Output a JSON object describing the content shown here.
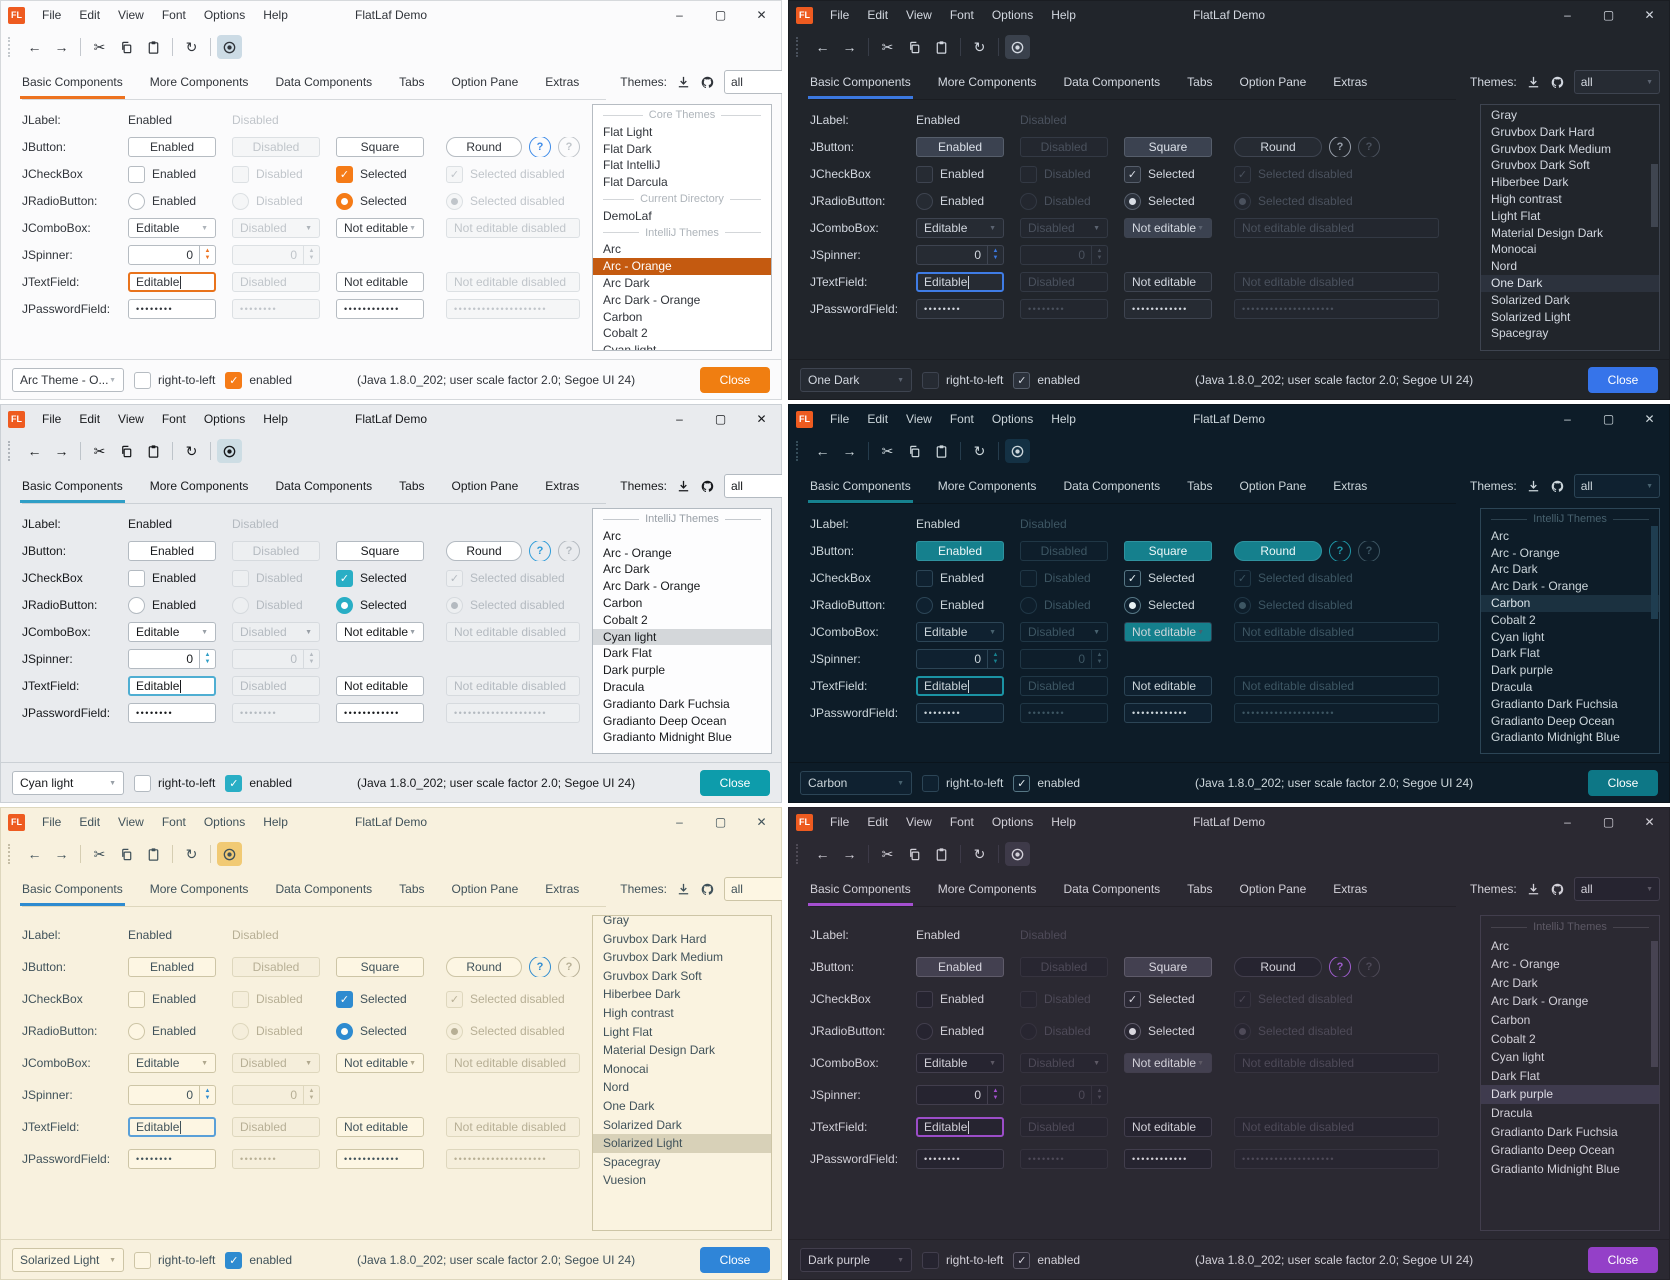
{
  "app": {
    "title": "FlatLaf Demo",
    "icon_text": "FL",
    "menu": [
      "File",
      "Edit",
      "View",
      "Font",
      "Options",
      "Help"
    ],
    "window_buttons": {
      "minimize": "–",
      "maximize": "▢",
      "close": "✕"
    }
  },
  "glyphs": {
    "back": "←",
    "forward": "→",
    "cut": "✂",
    "refresh": "↻",
    "combo_arrow": "▼",
    "check": "✓",
    "help": "?"
  },
  "tabs": [
    "Basic Components",
    "More Components",
    "Data Components",
    "Tabs",
    "Option Pane",
    "Extras"
  ],
  "themes_panel": {
    "label": "Themes:",
    "filter_value": "all"
  },
  "components": {
    "rows": {
      "jlabel": "JLabel:",
      "jbutton": "JButton:",
      "jcheckbox": "JCheckBox",
      "jradiobutton": "JRadioButton:",
      "jcombobox": "JComboBox:",
      "jspinner": "JSpinner:",
      "jtextfield": "JTextField:",
      "jpasswordfield": "JPasswordField:"
    },
    "jlabel": {
      "enabled": "Enabled",
      "disabled": "Disabled"
    },
    "jbutton": {
      "enabled": "Enabled",
      "disabled": "Disabled",
      "square": "Square",
      "round": "Round"
    },
    "jcheckbox": {
      "enabled": "Enabled",
      "disabled": "Disabled",
      "selected": "Selected",
      "selected_disabled": "Selected disabled"
    },
    "jradiobutton": {
      "enabled": "Enabled",
      "disabled": "Disabled",
      "selected": "Selected",
      "selected_disabled": "Selected disabled"
    },
    "jcombobox": {
      "editable": "Editable",
      "disabled": "Disabled",
      "not_editable": "Not editable",
      "not_editable_disabled": "Not editable disabled"
    },
    "jspinner": {
      "value": "0"
    },
    "jtextfield": {
      "editable": "Editable",
      "disabled": "Disabled",
      "not_editable": "Not editable",
      "not_editable_disabled": "Not editable disabled"
    },
    "jpasswordfield": {
      "enabled": "••••••••",
      "disabled": "••••••••",
      "not_editable": "••••••••••••",
      "not_editable_disabled": "••••••••••••••••••••"
    }
  },
  "statusbar": {
    "rtl_label": "right-to-left",
    "enabled_label": "enabled",
    "java_info": "(Java 1.8.0_202;  user scale factor 2.0; Segoe UI 24)",
    "close_label": "Close"
  },
  "windows": [
    {
      "id": "arc",
      "status_combo": "Arc Theme - O...",
      "theme_list": [
        {
          "sep": "Core Themes"
        },
        {
          "label": "Flat Light"
        },
        {
          "label": "Flat Dark"
        },
        {
          "label": "Flat IntelliJ"
        },
        {
          "label": "Flat Darcula"
        },
        {
          "sep": "Current Directory"
        },
        {
          "label": "DemoLaf"
        },
        {
          "sep": "IntelliJ Themes"
        },
        {
          "label": "Arc"
        },
        {
          "label": "Arc - Orange",
          "selected": true
        },
        {
          "label": "Arc Dark"
        },
        {
          "label": "Arc Dark - Orange"
        },
        {
          "label": "Carbon"
        },
        {
          "label": "Cobalt 2"
        },
        {
          "label": "Cyan light"
        }
      ],
      "colors": {
        "bg": "#fbfbfc",
        "fg": "#30343a",
        "muted": "#aeb4ba",
        "border": "#d6d9dc",
        "ctrlbg": "#ffffff",
        "ctrlborder": "#b6bcc2",
        "disbg": "#f5f6f7",
        "disfg": "#c0c5ca",
        "disborder": "#dce0e3",
        "accent": "#ed721f",
        "focus": "#e9731c",
        "selbg": "#c45a10",
        "selfg": "#ffffff",
        "closebg": "#f07e11",
        "btnbg": "#ffffff",
        "btnfg": "#30343a",
        "checkfill": "#f57b17",
        "checkmark": "#ffffff",
        "checkborder": "#f57b17",
        "eyebg": "#ccdbe5",
        "help": "#3c8ae8",
        "listbg": "#ffffff",
        "scroll": "transparent"
      }
    },
    {
      "id": "onedark",
      "status_combo": "One Dark",
      "theme_list": [
        {
          "label": "Gray"
        },
        {
          "label": "Gruvbox Dark Hard"
        },
        {
          "label": "Gruvbox Dark Medium"
        },
        {
          "label": "Gruvbox Dark Soft"
        },
        {
          "label": "Hiberbee Dark"
        },
        {
          "label": "High contrast"
        },
        {
          "label": "Light Flat"
        },
        {
          "label": "Material Design Dark"
        },
        {
          "label": "Monocai"
        },
        {
          "label": "Nord"
        },
        {
          "label": "One Dark",
          "selected": true
        },
        {
          "label": "Solarized Dark"
        },
        {
          "label": "Solarized Light"
        },
        {
          "label": "Spacegray"
        }
      ],
      "colors": {
        "bg": "#21252b",
        "fg": "#d3d8e0",
        "muted": "#5b6370",
        "border": "#1a1d22",
        "ctrlbg": "#262b33",
        "ctrlborder": "#3e4450",
        "disbg": "#23272f",
        "disfg": "#4a515d",
        "disborder": "#333944",
        "accent": "#3b78e0",
        "focus": "#3f7ce5",
        "selbg": "#2c323d",
        "selfg": "#dde2ea",
        "closebg": "#3674ea",
        "btnbg": "#3b4250",
        "btnfg": "#dbe0e8",
        "checkfill": "#2b313b",
        "checkmark": "#d8dde5",
        "checkborder": "#565e6b",
        "eyebg": "#3a414c",
        "help": "#9aa1ad",
        "listbg": "#21252b",
        "scroll": "#3f4550"
      }
    },
    {
      "id": "cyan",
      "status_combo": "Cyan light",
      "theme_list": [
        {
          "sep": "IntelliJ Themes"
        },
        {
          "label": "Arc"
        },
        {
          "label": "Arc - Orange"
        },
        {
          "label": "Arc Dark"
        },
        {
          "label": "Arc Dark - Orange"
        },
        {
          "label": "Carbon"
        },
        {
          "label": "Cobalt 2"
        },
        {
          "label": "Cyan light",
          "selected": true
        },
        {
          "label": "Dark Flat"
        },
        {
          "label": "Dark purple"
        },
        {
          "label": "Dracula"
        },
        {
          "label": "Gradianto Dark Fuchsia"
        },
        {
          "label": "Gradianto Deep Ocean"
        },
        {
          "label": "Gradianto Midnight Blue"
        }
      ],
      "colors": {
        "bg": "#e9ebee",
        "fg": "#17191c",
        "muted": "#989fa6",
        "border": "#cbd0d5",
        "ctrlbg": "#ffffff",
        "ctrlborder": "#b3bac1",
        "disbg": "#edeff1",
        "disfg": "#b4bac0",
        "disborder": "#d6dade",
        "accent": "#2f9ec6",
        "focus": "#4faed2",
        "selbg": "#d4d7da",
        "selfg": "#17191c",
        "closebg": "#0d9cab",
        "btnbg": "#ffffff",
        "btnfg": "#17191c",
        "checkfill": "#29aec5",
        "checkmark": "#ffffff",
        "checkborder": "#29aec5",
        "eyebg": "#cddde4",
        "help": "#2d9bd8",
        "listbg": "#fdfdfe",
        "scroll": "transparent"
      }
    },
    {
      "id": "carbon",
      "status_combo": "Carbon",
      "theme_list": [
        {
          "sep": "IntelliJ Themes"
        },
        {
          "label": "Arc"
        },
        {
          "label": "Arc - Orange"
        },
        {
          "label": "Arc Dark"
        },
        {
          "label": "Arc Dark - Orange"
        },
        {
          "label": "Carbon",
          "selected": true
        },
        {
          "label": "Cobalt 2"
        },
        {
          "label": "Cyan light"
        },
        {
          "label": "Dark Flat"
        },
        {
          "label": "Dark purple"
        },
        {
          "label": "Dracula"
        },
        {
          "label": "Gradianto Dark Fuchsia"
        },
        {
          "label": "Gradianto Deep Ocean"
        },
        {
          "label": "Gradianto Midnight Blue"
        }
      ],
      "colors": {
        "bg": "#0d1c28",
        "fg": "#ccd6db",
        "muted": "#47616e",
        "border": "#0a141c",
        "ctrlbg": "#0f2130",
        "ctrlborder": "#2c4556",
        "disbg": "#0e1e2b",
        "disfg": "#3d5663",
        "disborder": "#203746",
        "accent": "#16818f",
        "focus": "#1b93a4",
        "selbg": "#1b3140",
        "selfg": "#d9e3e8",
        "closebg": "#0d7786",
        "btnbg": "#15808d",
        "btnfg": "#ecf6f8",
        "checkfill": "#0f2130",
        "checkmark": "#e8f1f4",
        "checkborder": "#567684",
        "eyebg": "#143144",
        "help": "#1f98a8",
        "listbg": "#0d1c28",
        "scroll": "#1f3d50"
      }
    },
    {
      "id": "solar",
      "status_combo": "Solarized Light",
      "theme_list": [
        {
          "label": "Gray",
          "clipped": true
        },
        {
          "label": "Gruvbox Dark Hard"
        },
        {
          "label": "Gruvbox Dark Medium"
        },
        {
          "label": "Gruvbox Dark Soft"
        },
        {
          "label": "Hiberbee Dark"
        },
        {
          "label": "High contrast"
        },
        {
          "label": "Light Flat"
        },
        {
          "label": "Material Design Dark"
        },
        {
          "label": "Monocai"
        },
        {
          "label": "Nord"
        },
        {
          "label": "One Dark"
        },
        {
          "label": "Solarized Dark"
        },
        {
          "label": "Solarized Light",
          "selected": true
        },
        {
          "label": "Spacegray"
        },
        {
          "label": "Vuesion"
        }
      ],
      "colors": {
        "bg": "#f8f1de",
        "fg": "#40525a",
        "muted": "#b0a88e",
        "border": "#ded7bd",
        "ctrlbg": "#fdf6e3",
        "ctrlborder": "#cdc5a6",
        "disbg": "#f5eedb",
        "disfg": "#b7af95",
        "disborder": "#ded7bd",
        "accent": "#2e8bd0",
        "focus": "#5aa0d8",
        "selbg": "#d8d1b8",
        "selfg": "#40525a",
        "closebg": "#2f85d8",
        "btnbg": "#fdf6e3",
        "btnfg": "#40525a",
        "checkfill": "#2e8bd0",
        "checkmark": "#fffdf6",
        "checkborder": "#2e8bd0",
        "eyebg": "#f1ca74",
        "help": "#2e8bd0",
        "listbg": "#faf3e0",
        "scroll": "transparent"
      }
    },
    {
      "id": "purple",
      "status_combo": "Dark purple",
      "theme_list": [
        {
          "sep": "IntelliJ Themes"
        },
        {
          "label": "Arc"
        },
        {
          "label": "Arc - Orange"
        },
        {
          "label": "Arc Dark"
        },
        {
          "label": "Arc Dark - Orange"
        },
        {
          "label": "Carbon"
        },
        {
          "label": "Cobalt 2"
        },
        {
          "label": "Cyan light"
        },
        {
          "label": "Dark Flat"
        },
        {
          "label": "Dark purple",
          "selected": true
        },
        {
          "label": "Dracula"
        },
        {
          "label": "Gradianto Dark Fuchsia"
        },
        {
          "label": "Gradianto Deep Ocean"
        },
        {
          "label": "Gradianto Midnight Blue"
        }
      ],
      "colors": {
        "bg": "#2b2932",
        "fg": "#d2d0d8",
        "muted": "#5d5965",
        "border": "#232128",
        "ctrlbg": "#262430",
        "ctrlborder": "#423e4d",
        "disbg": "#282631",
        "disfg": "#4e4a58",
        "disborder": "#36333f",
        "accent": "#a44fd0",
        "focus": "#9b4dc8",
        "selbg": "#3f3b4e",
        "selfg": "#dddbe4",
        "closebg": "#9440c8",
        "btnbg": "#434050",
        "btnfg": "#d9d7e0",
        "checkfill": "#2a2834",
        "checkmark": "#d8d6de",
        "checkborder": "#5f5b6a",
        "eyebg": "#3e3a49",
        "help": "#a05ecf",
        "listbg": "#2b2932",
        "scroll": "#474352"
      }
    }
  ]
}
